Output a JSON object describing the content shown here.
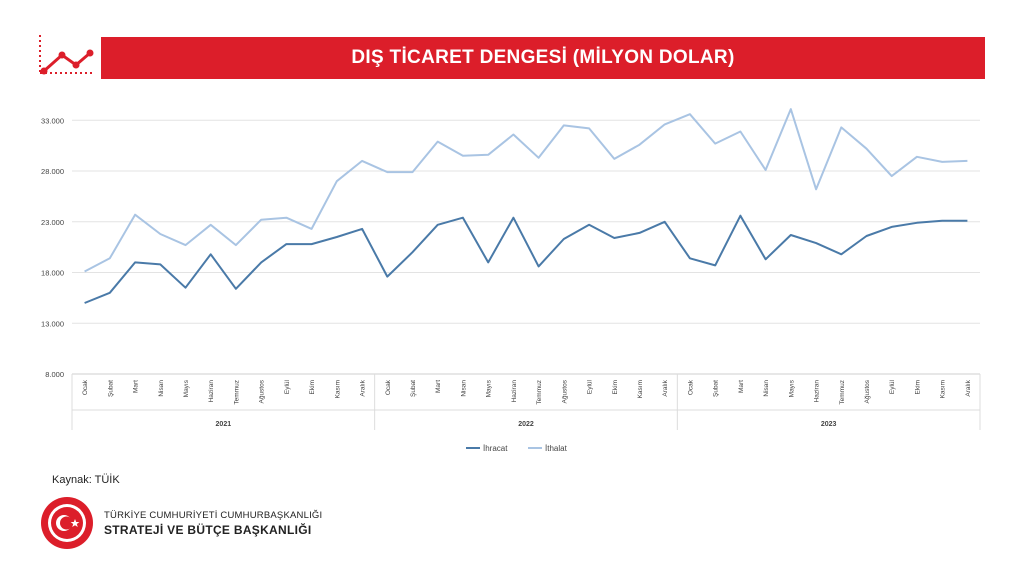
{
  "header": {
    "title": "DIŞ TİCARET DENGESİ (MİLYON DOLAR)"
  },
  "footer": {
    "source": "Kaynak: TÜİK",
    "org_line1": "TÜRKİYE CUMHURİYETİ CUMHURBAŞKANLIĞI",
    "org_line2": "STRATEJİ VE BÜTÇE BAŞKANLIĞI"
  },
  "colors": {
    "accent": "#dc1e2a",
    "exports": "#4a7aa8",
    "imports": "#a9c4e3",
    "grid": "#e3e3e3"
  },
  "chart_data": {
    "type": "line",
    "title": "",
    "xlabel": "",
    "ylabel": "",
    "ylim": [
      8000,
      35000
    ],
    "yticks": [
      8000,
      13000,
      18000,
      23000,
      28000,
      33000
    ],
    "ytick_labels": [
      "8.000",
      "13.000",
      "18.000",
      "23.000",
      "28.000",
      "33.000"
    ],
    "grid": true,
    "legend_position": "bottom",
    "months": [
      "Ocak",
      "Şubat",
      "Mart",
      "Nisan",
      "Mayıs",
      "Haziran",
      "Temmuz",
      "Ağustos",
      "Eylül",
      "Ekim",
      "Kasım",
      "Aralık"
    ],
    "years": [
      "2021",
      "2022",
      "2023"
    ],
    "series": [
      {
        "name": "İhracat",
        "values": [
          15000,
          16000,
          19000,
          18800,
          16500,
          19800,
          16400,
          19000,
          20800,
          20800,
          21500,
          22300,
          17600,
          20000,
          22700,
          23400,
          19000,
          23400,
          18600,
          21300,
          22700,
          21400,
          21900,
          23000,
          19400,
          18700,
          23600,
          19300,
          21700,
          20900,
          19800,
          21600,
          22500,
          22900,
          23100,
          23100
        ]
      },
      {
        "name": "İthalat",
        "values": [
          18100,
          19400,
          23700,
          21800,
          20700,
          22700,
          20700,
          23200,
          23400,
          22300,
          27000,
          29000,
          27900,
          27900,
          30900,
          29500,
          29600,
          31600,
          29300,
          32500,
          32200,
          29200,
          30600,
          32600,
          33600,
          30700,
          31900,
          28100,
          34100,
          26200,
          32300,
          30200,
          27500,
          29400,
          28900,
          29000
        ]
      }
    ]
  }
}
